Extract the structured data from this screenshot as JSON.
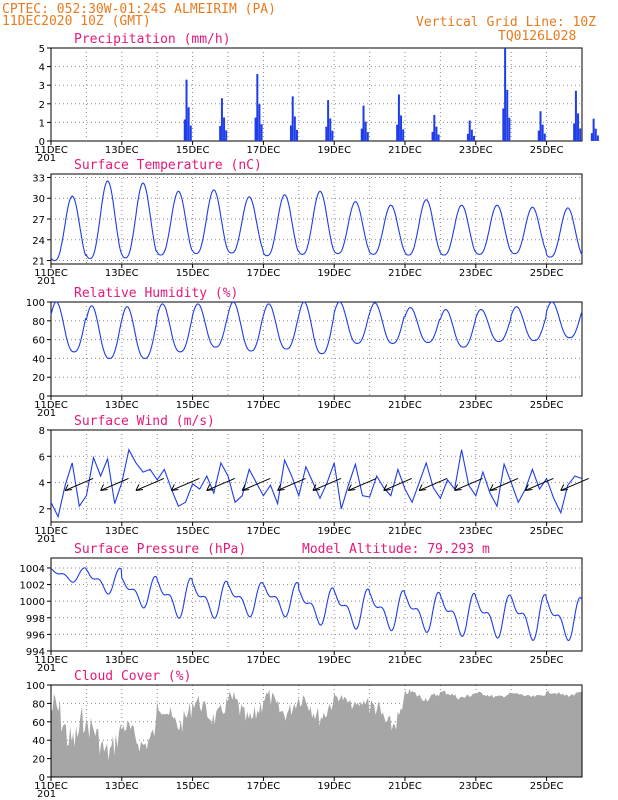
{
  "header": {
    "line1": "CPTEC:   052:30W-01:24S   ALMEIRIM (PA)",
    "line2": "11DEC2020 10Z (GMT)",
    "grid_note": "Vertical Grid Line: 10Z",
    "code": "TQ0126L028"
  },
  "colors": {
    "header": "#e87b1e",
    "title": "#e6197a",
    "series": "#1f3de8",
    "cloud": "#a6a6a6",
    "grid": "#8a8a8a"
  },
  "x_ticks": [
    "11DEC",
    "13DEC",
    "15DEC",
    "17DEC",
    "19DEC",
    "21DEC",
    "23DEC",
    "25DEC"
  ],
  "x_cut_label": "201",
  "chart_data": [
    {
      "type": "bar",
      "title": "Precipitation (mm/h)",
      "ylim": [
        0,
        5
      ],
      "yticks": [
        0,
        1,
        2,
        3,
        4,
        5
      ],
      "x_range_days": [
        0,
        15
      ],
      "bursts": [
        {
          "day": 3.8,
          "peak": 3.3
        },
        {
          "day": 4.8,
          "peak": 2.3
        },
        {
          "day": 5.8,
          "peak": 3.6
        },
        {
          "day": 6.8,
          "peak": 2.4
        },
        {
          "day": 7.8,
          "peak": 2.2
        },
        {
          "day": 8.8,
          "peak": 1.9
        },
        {
          "day": 9.8,
          "peak": 2.5
        },
        {
          "day": 10.8,
          "peak": 1.4
        },
        {
          "day": 11.8,
          "peak": 1.1
        },
        {
          "day": 12.8,
          "peak": 5.0
        },
        {
          "day": 13.8,
          "peak": 1.6
        },
        {
          "day": 14.8,
          "peak": 2.7
        },
        {
          "day": 15.3,
          "peak": 1.2
        }
      ]
    },
    {
      "type": "line",
      "title": "Surface Temperature (nC)",
      "ylim": [
        20.5,
        33.5
      ],
      "yticks": [
        21,
        24,
        27,
        30,
        33
      ],
      "x_range_days": [
        0,
        15
      ],
      "min_values": [
        21.0,
        21.3,
        21.4,
        21.8,
        22.0,
        22.1,
        21.7,
        21.9,
        22.0,
        21.9,
        21.8,
        21.8,
        21.9,
        22.0,
        21.5
      ],
      "max_values": [
        30.3,
        32.5,
        32.2,
        31.0,
        31.2,
        30.2,
        30.5,
        31.0,
        29.5,
        29.0,
        29.8,
        29.0,
        29.0,
        28.7,
        28.6
      ]
    },
    {
      "type": "line",
      "title": "Relative Humidity (%)",
      "ylim": [
        0,
        100
      ],
      "yticks": [
        0,
        20,
        40,
        60,
        80,
        100
      ],
      "x_range_days": [
        0,
        15
      ],
      "min_values": [
        47,
        40,
        40,
        47,
        52,
        48,
        50,
        45,
        56,
        56,
        57,
        52,
        58,
        59,
        62
      ],
      "max_values": [
        100,
        96,
        95,
        98,
        98,
        100,
        98,
        100,
        100,
        99,
        94,
        92,
        92,
        95,
        100
      ]
    },
    {
      "type": "line",
      "title": "Surface Wind (m/s)",
      "ylim": [
        1,
        8
      ],
      "yticks": [
        2,
        4,
        6,
        8
      ],
      "x_range_days": [
        0,
        15
      ],
      "x_values_days": [
        0,
        0.2,
        0.4,
        0.6,
        0.8,
        1.0,
        1.2,
        1.4,
        1.6,
        1.8,
        2.0,
        2.2,
        2.4,
        2.6,
        2.8,
        3.0,
        3.2,
        3.4,
        3.6,
        3.8,
        4.0,
        4.2,
        4.4,
        4.6,
        4.8,
        5.0,
        5.2,
        5.4,
        5.6,
        5.8,
        6.0,
        6.2,
        6.4,
        6.6,
        6.8,
        7.0,
        7.2,
        7.4,
        7.6,
        7.8,
        8.0,
        8.2,
        8.4,
        8.6,
        8.8,
        9.0,
        9.2,
        9.4,
        9.6,
        9.8,
        10.0,
        10.2,
        10.4,
        10.6,
        10.8,
        11.0,
        11.2,
        11.4,
        11.6,
        11.8,
        12.0,
        12.2,
        12.4,
        12.6,
        12.8,
        13.0,
        13.2,
        13.4,
        13.6,
        13.8,
        14.0,
        14.2,
        14.4,
        14.6,
        14.8,
        15.0
      ],
      "values": [
        2.5,
        1.4,
        3.8,
        5.5,
        2.2,
        3.0,
        5.9,
        4.5,
        5.8,
        2.4,
        4.0,
        6.5,
        5.5,
        4.8,
        5.0,
        4.2,
        5.0,
        3.5,
        2.2,
        2.5,
        3.9,
        3.5,
        4.5,
        3.2,
        5.5,
        4.5,
        2.5,
        3.0,
        5.0,
        4.0,
        3.0,
        3.8,
        2.4,
        5.7,
        4.5,
        3.0,
        5.2,
        4.0,
        2.8,
        4.0,
        5.5,
        2.0,
        3.8,
        5.4,
        3.0,
        2.9,
        4.5,
        3.6,
        3.0,
        5.0,
        3.5,
        2.5,
        4.0,
        5.5,
        3.6,
        2.8,
        4.2,
        3.5,
        6.5,
        3.8,
        3.0,
        4.8,
        3.2,
        2.2,
        5.4,
        4.0,
        2.5,
        3.5,
        5.0,
        3.5,
        4.3,
        2.8,
        1.7,
        3.8,
        4.5,
        4.3
      ],
      "barbs_at_days": [
        0.4,
        1.4,
        2.4,
        3.4,
        4.4,
        5.4,
        6.4,
        7.4,
        8.4,
        9.4,
        10.4,
        11.4,
        12.4,
        13.4,
        14.4
      ]
    },
    {
      "type": "line",
      "title": "Surface Pressure (hPa)",
      "subtitle": "Model Altitude: 79.293 m",
      "ylim": [
        994,
        1005.2
      ],
      "yticks": [
        994,
        996,
        998,
        1000,
        1002,
        1004
      ],
      "x_range_days": [
        0,
        15
      ],
      "daily_mean": [
        1003.2,
        1002.5,
        1001.2,
        1000.5,
        1000.3,
        1000.3,
        1000.3,
        999.5,
        999.2,
        999.0,
        998.8,
        998.5,
        998.3,
        998.2,
        998.0
      ],
      "amplitude": [
        1.0,
        1.8,
        2.2,
        2.8,
        2.6,
        2.4,
        2.4,
        2.6,
        2.8,
        2.8,
        2.8,
        3.0,
        3.0,
        3.2,
        3.0
      ]
    },
    {
      "type": "bar",
      "title": "Cloud Cover (%)",
      "ylim": [
        0,
        100
      ],
      "yticks": [
        0,
        20,
        40,
        60,
        80,
        100
      ],
      "x_range_days": [
        0,
        15
      ],
      "daily_max": [
        95,
        70,
        65,
        90,
        92,
        95,
        97,
        98,
        92,
        88,
        96,
        95,
        93,
        92,
        94
      ],
      "daily_min": [
        10,
        5,
        20,
        40,
        50,
        45,
        55,
        50,
        70,
        40,
        80,
        82,
        84,
        85,
        86
      ]
    }
  ]
}
